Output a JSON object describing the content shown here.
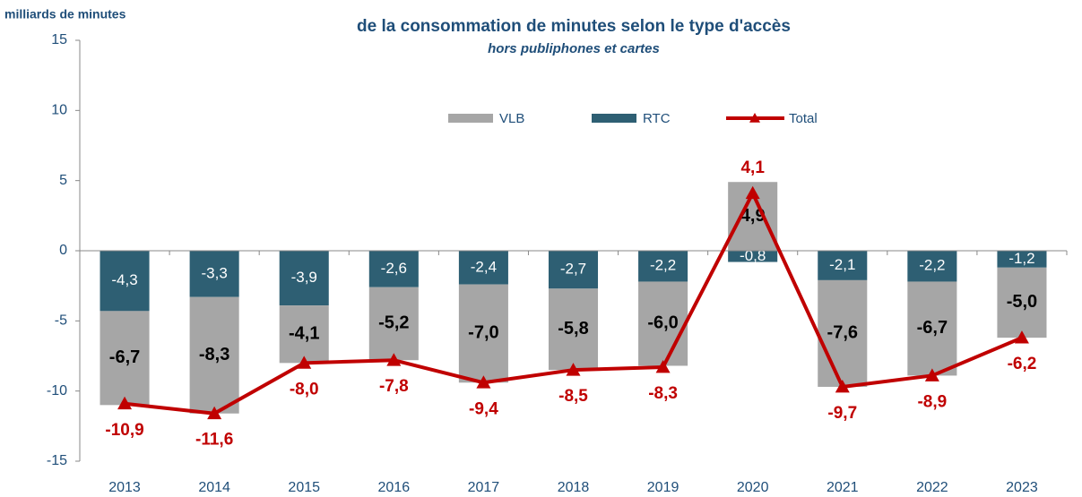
{
  "chart_data": {
    "type": "stacked_bar_line",
    "title": "de la consommation de minutes selon le type d'accès",
    "subtitle": "hors publiphones et cartes",
    "y_axis_label": "milliards de minutes",
    "categories": [
      "2013",
      "2014",
      "2015",
      "2016",
      "2017",
      "2018",
      "2019",
      "2020",
      "2021",
      "2022",
      "2023"
    ],
    "series": [
      {
        "name": "VLB",
        "color": "#a6a6a6",
        "kind": "bar",
        "values": [
          -6.7,
          -8.3,
          -4.1,
          -5.2,
          -7.0,
          -5.8,
          -6.0,
          4.9,
          -7.6,
          -6.7,
          -5.0
        ],
        "value_labels": [
          "-6,7",
          "-8,3",
          "-4,1",
          "-5,2",
          "-7,0",
          "-5,8",
          "-6,0",
          "4,9",
          "-7,6",
          "-6,7",
          "-5,0"
        ]
      },
      {
        "name": "RTC",
        "color": "#2e5f73",
        "kind": "bar",
        "values": [
          -4.3,
          -3.3,
          -3.9,
          -2.6,
          -2.4,
          -2.7,
          -2.2,
          -0.8,
          -2.1,
          -2.2,
          -1.2
        ],
        "value_labels": [
          "-4,3",
          "-3,3",
          "-3,9",
          "-2,6",
          "-2,4",
          "-2,7",
          "-2,2",
          "-0,8",
          "-2,1",
          "-2,2",
          "-1,2"
        ]
      },
      {
        "name": "Total",
        "color": "#c00000",
        "kind": "line",
        "values": [
          -10.9,
          -11.6,
          -8.0,
          -7.8,
          -9.4,
          -8.5,
          -8.3,
          4.1,
          -9.7,
          -8.9,
          -6.2
        ],
        "value_labels": [
          "-10,9",
          "-11,6",
          "-8,0",
          "-7,8",
          "-9,4",
          "-8,5",
          "-8,3",
          "4,1",
          "-9,7",
          "-8,9",
          "-6,2"
        ]
      }
    ],
    "ylim": [
      -15,
      15
    ],
    "yticks": [
      -15,
      -10,
      -5,
      0,
      5,
      10,
      15
    ],
    "grid": false
  }
}
